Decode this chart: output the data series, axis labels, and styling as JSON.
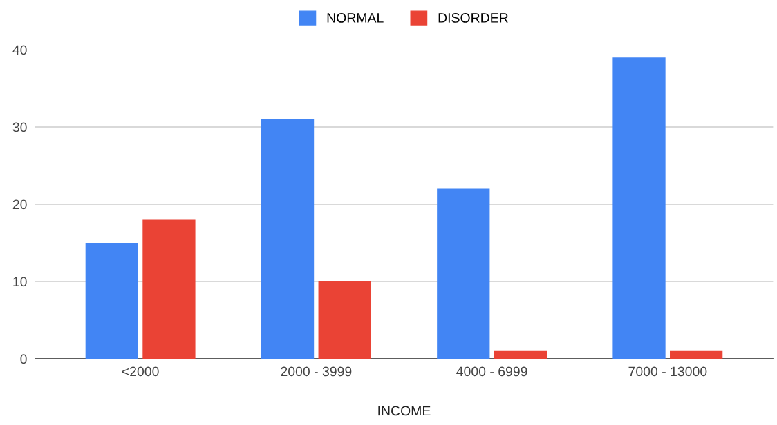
{
  "chart_data": {
    "type": "bar",
    "xlabel": "INCOME",
    "categories": [
      "<2000",
      "2000 - 3999",
      "4000 - 6999",
      "7000 - 13000"
    ],
    "series": [
      {
        "name": "NORMAL",
        "color": "#4285f4",
        "values": [
          15,
          31,
          22,
          39
        ]
      },
      {
        "name": "DISORDER",
        "color": "#ea4335",
        "values": [
          18,
          10,
          1,
          1
        ]
      }
    ],
    "ylim": [
      0,
      40
    ],
    "yticks": [
      0,
      10,
      20,
      30,
      40
    ],
    "grid": "y",
    "legend": "top"
  }
}
